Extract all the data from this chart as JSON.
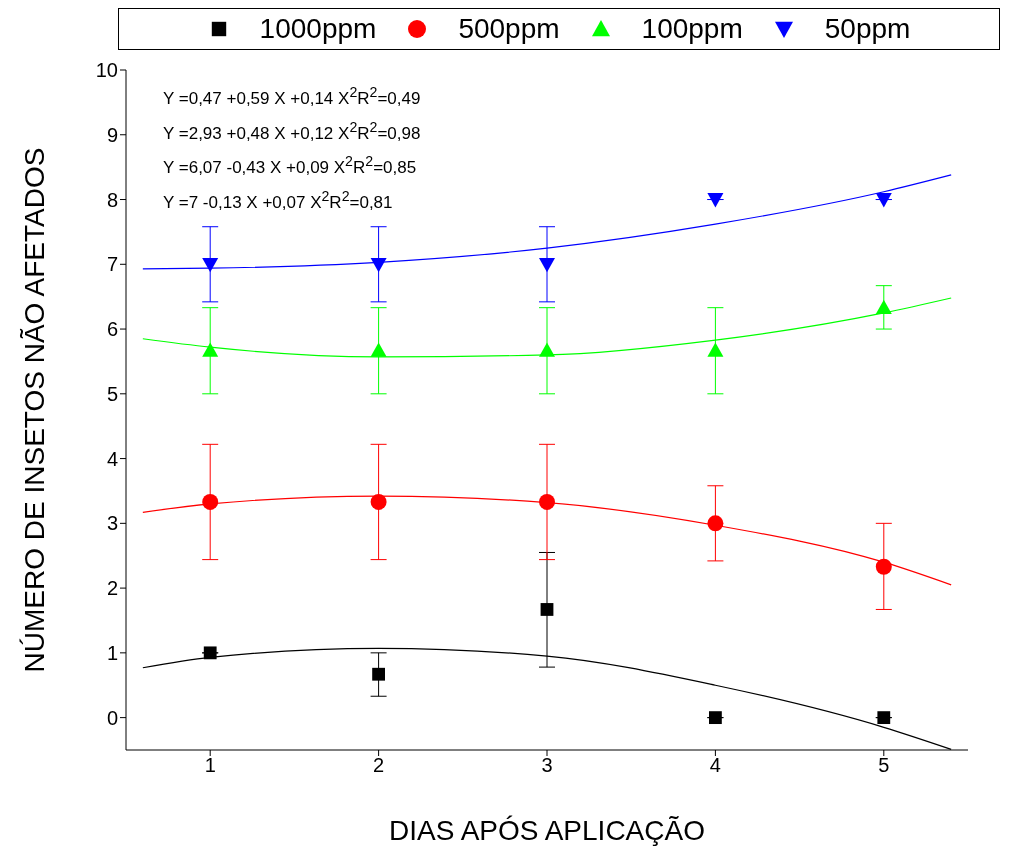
{
  "chart_data": {
    "type": "scatter",
    "xlabel": "DIAS APÓS APLICAÇÃO",
    "ylabel": "NÚMERO DE INSETOS NÃO AFETADOS",
    "xlim": [
      0.5,
      5.5
    ],
    "xticks": [
      1,
      2,
      3,
      4,
      5
    ],
    "ylim": [
      -0.5,
      10
    ],
    "yticks": [
      0,
      1,
      2,
      3,
      4,
      5,
      6,
      7,
      8,
      9,
      10
    ],
    "grid": false,
    "legend": "top",
    "annotations": [
      "Y =0,47 +0,59 X +0,14 X$^{2}$R$^{2}$=0,49",
      "Y =2,93 +0,48 X +0,12 X$^{2}$R$^{2}$=0,98",
      "Y =6,07 -0,43 X +0,09 X$^{2}$R$^{2}$=0,85",
      "Y =7 -0,13 X +0,07 X$^{2}$R$^{2}$=0,81"
    ],
    "x": [
      1,
      2,
      3,
      4,
      5
    ],
    "series": [
      {
        "name": "1000ppm",
        "color": "#000000",
        "marker": "square",
        "values": [
          1,
          0.67,
          1.67,
          0,
          0
        ],
        "errors": [
          null,
          [
            0.33,
            1.0
          ],
          [
            0.78,
            2.55
          ],
          null,
          null
        ]
      },
      {
        "name": "500ppm",
        "color": "#ff0000",
        "marker": "circle",
        "values": [
          3.33,
          3.33,
          3.33,
          3.0,
          2.33
        ],
        "errors": [
          [
            2.44,
            4.22
          ],
          [
            2.44,
            4.22
          ],
          [
            2.44,
            4.22
          ],
          [
            2.42,
            3.58
          ],
          [
            1.67,
            3.0
          ]
        ]
      },
      {
        "name": "100ppm",
        "color": "#00ff00",
        "marker": "triangle",
        "values": [
          5.67,
          5.67,
          5.67,
          5.67,
          6.33
        ],
        "errors": [
          [
            5.0,
            6.33
          ],
          [
            5.0,
            6.33
          ],
          [
            5.0,
            6.33
          ],
          [
            5.0,
            6.33
          ],
          [
            6.0,
            6.67
          ]
        ]
      },
      {
        "name": "50ppm",
        "color": "#0000ff",
        "marker": "triangle-down",
        "values": [
          7,
          7,
          7,
          8,
          8
        ],
        "errors": [
          [
            6.42,
            7.58
          ],
          [
            6.42,
            7.58
          ],
          [
            6.42,
            7.58
          ],
          null,
          null
        ]
      },
      {
        "type": "line",
        "color": "#000000",
        "x": [
          0.6,
          1,
          2,
          3,
          4,
          5,
          5.4
        ],
        "values": [
          0.77,
          0.93,
          1.07,
          0.95,
          0.5,
          -0.15,
          -0.49
        ]
      },
      {
        "type": "line",
        "color": "#ff0000",
        "x": [
          0.6,
          1,
          2,
          3,
          4,
          5,
          5.4
        ],
        "values": [
          3.17,
          3.3,
          3.42,
          3.32,
          2.97,
          2.4,
          2.05
        ]
      },
      {
        "type": "line",
        "color": "#00ff00",
        "x": [
          0.6,
          1,
          2,
          3,
          4,
          5,
          5.4
        ],
        "values": [
          5.85,
          5.72,
          5.57,
          5.6,
          5.83,
          6.25,
          6.48
        ]
      },
      {
        "type": "line",
        "color": "#0000ff",
        "x": [
          0.6,
          1,
          2,
          3,
          4,
          5,
          5.4
        ],
        "values": [
          6.93,
          6.94,
          7.03,
          7.25,
          7.62,
          8.12,
          8.38
        ]
      }
    ]
  }
}
